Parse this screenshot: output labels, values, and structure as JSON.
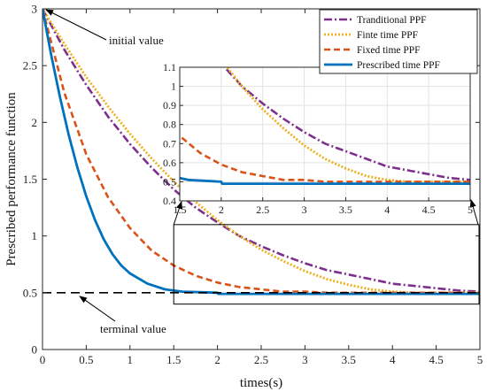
{
  "chart_data": {
    "type": "line",
    "title": "",
    "xlabel": "times(s)",
    "ylabel": "Prescribed performance function",
    "xlim": [
      0,
      5
    ],
    "ylim": [
      0,
      3
    ],
    "xticks": [
      0,
      0.5,
      1,
      1.5,
      2,
      2.5,
      3,
      3.5,
      4,
      4.5,
      5
    ],
    "yticks": [
      0,
      0.5,
      1,
      1.5,
      2,
      2.5,
      3
    ],
    "xtick_labels": [
      "0",
      "0.5",
      "1",
      "1.5",
      "2",
      "2.5",
      "3",
      "3.5",
      "4",
      "4.5",
      "5"
    ],
    "ytick_labels": [
      "0",
      "0.5",
      "1",
      "1.5",
      "2",
      "2.5",
      "3"
    ],
    "grid": false,
    "legend_position": "top-right",
    "terminal_line": {
      "y": 0.5,
      "color": "#000000"
    },
    "annotations": [
      {
        "text": "initial value",
        "x": 0,
        "y": 3
      },
      {
        "text": "terminal value",
        "x": 0.4,
        "y": 0.5
      }
    ],
    "series": [
      {
        "name": "Tranditional PPF",
        "color": "#7e2f8e",
        "style": "dashdot",
        "x": [
          0,
          0.25,
          0.5,
          0.75,
          1,
          1.25,
          1.5,
          1.75,
          2,
          2.25,
          2.5,
          2.75,
          3,
          3.25,
          3.5,
          3.75,
          4,
          4.25,
          4.5,
          4.75,
          5
        ],
        "values": [
          3.0,
          2.64,
          2.33,
          2.05,
          1.81,
          1.6,
          1.41,
          1.25,
          1.12,
          1.0,
          0.91,
          0.83,
          0.76,
          0.7,
          0.66,
          0.62,
          0.58,
          0.56,
          0.54,
          0.52,
          0.51
        ]
      },
      {
        "name": "Finte time PPF",
        "color": "#edb120",
        "style": "dotted",
        "x": [
          0,
          0.25,
          0.5,
          0.75,
          1,
          1.25,
          1.5,
          1.75,
          2,
          2.25,
          2.5,
          2.75,
          3,
          3.25,
          3.5,
          3.75,
          4,
          4.25,
          4.5,
          4.75,
          5
        ],
        "values": [
          3.0,
          2.69,
          2.4,
          2.14,
          1.9,
          1.68,
          1.48,
          1.3,
          1.14,
          1.0,
          0.88,
          0.78,
          0.69,
          0.62,
          0.57,
          0.53,
          0.51,
          0.5,
          0.5,
          0.5,
          0.5
        ]
      },
      {
        "name": "Fixed time PPF",
        "color": "#d95319",
        "style": "dashed",
        "x": [
          0,
          0.25,
          0.5,
          0.75,
          1,
          1.25,
          1.5,
          1.75,
          2,
          2.25,
          2.5,
          2.75,
          3,
          3.25,
          3.5,
          3.75,
          4,
          4.25,
          4.5,
          4.75,
          5
        ],
        "values": [
          3.0,
          2.26,
          1.72,
          1.34,
          1.07,
          0.87,
          0.74,
          0.65,
          0.59,
          0.55,
          0.53,
          0.51,
          0.51,
          0.5,
          0.5,
          0.5,
          0.5,
          0.5,
          0.5,
          0.5,
          0.5
        ]
      },
      {
        "name": "Prescribed time PPF",
        "color": "#0072bd",
        "style": "solid",
        "x": [
          0,
          0.1,
          0.2,
          0.3,
          0.4,
          0.5,
          0.6,
          0.7,
          0.8,
          0.9,
          1.0,
          1.2,
          1.4,
          1.6,
          1.8,
          2.0,
          2.01,
          2.5,
          3,
          3.5,
          4,
          4.5,
          5
        ],
        "values": [
          3.0,
          2.59,
          2.22,
          1.89,
          1.6,
          1.35,
          1.14,
          0.97,
          0.84,
          0.74,
          0.67,
          0.58,
          0.53,
          0.51,
          0.505,
          0.5,
          0.49,
          0.49,
          0.49,
          0.49,
          0.49,
          0.49,
          0.49
        ]
      }
    ],
    "inset": {
      "xlim": [
        1.5,
        5
      ],
      "ylim": [
        0.4,
        1.1
      ],
      "xticks": [
        1.5,
        2,
        2.5,
        3,
        3.5,
        4,
        4.5,
        5
      ],
      "yticks": [
        0.4,
        0.5,
        0.6,
        0.7,
        0.8,
        0.9,
        1.0,
        1.1
      ],
      "xtick_labels": [
        "1.5",
        "2",
        "2.5",
        "3",
        "3.5",
        "4",
        "4.5",
        "5"
      ],
      "ytick_labels": [
        "0.4",
        "0.5",
        "0.6",
        "0.7",
        "0.8",
        "0.9",
        "1",
        "1.1"
      ],
      "grid": true,
      "zoom_region": {
        "x": [
          1.5,
          5
        ],
        "y": [
          0.4,
          1.1
        ]
      }
    }
  }
}
